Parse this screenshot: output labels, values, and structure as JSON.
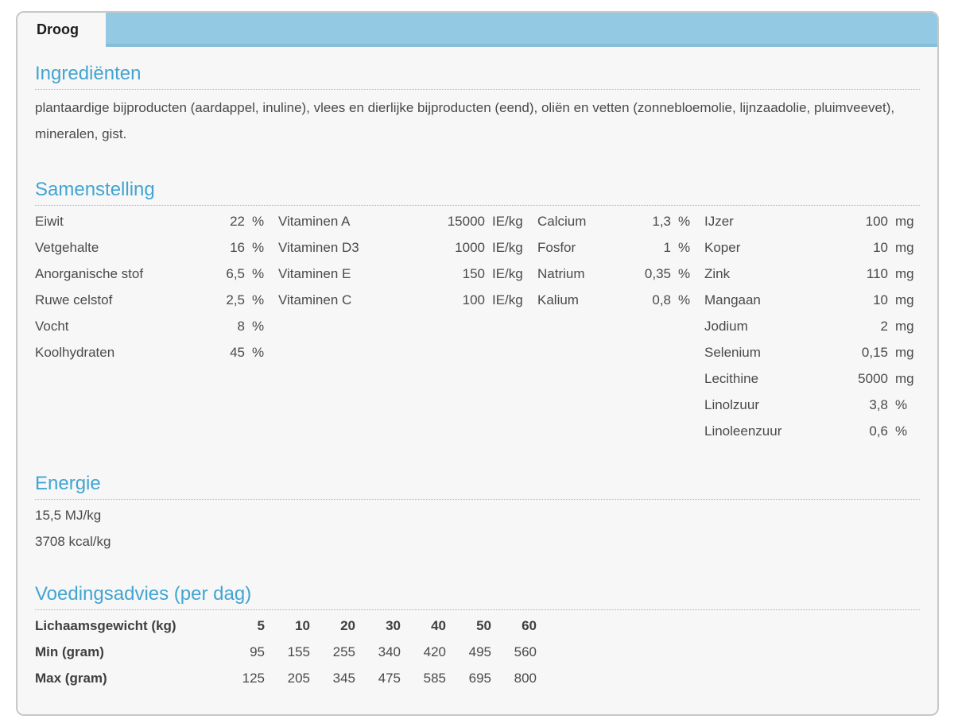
{
  "colors": {
    "tab_bar": "#93c9e3",
    "heading": "#42a4d2"
  },
  "tab": {
    "label": "Droog"
  },
  "sections": {
    "ingredients": {
      "title": "Ingrediënten",
      "text": "plantaardige bijproducten (aardappel, inuline), vlees en dierlijke bijproducten (eend), oliën en vetten (zonnebloemolie, lijnzaadolie, pluimveevet), mineralen, gist."
    },
    "composition": {
      "title": "Samenstelling",
      "columns": [
        {
          "rows": [
            {
              "label": "Eiwit",
              "value": "22",
              "unit": "%"
            },
            {
              "label": "Vetgehalte",
              "value": "16",
              "unit": "%"
            },
            {
              "label": "Anorganische stof",
              "value": "6,5",
              "unit": "%"
            },
            {
              "label": "Ruwe celstof",
              "value": "2,5",
              "unit": "%"
            },
            {
              "label": "Vocht",
              "value": "8",
              "unit": "%"
            },
            {
              "label": "Koolhydraten",
              "value": "45",
              "unit": "%"
            }
          ]
        },
        {
          "rows": [
            {
              "label": "Vitaminen A",
              "value": "15000",
              "unit": "IE/kg"
            },
            {
              "label": "Vitaminen D3",
              "value": "1000",
              "unit": "IE/kg"
            },
            {
              "label": "Vitaminen E",
              "value": "150",
              "unit": "IE/kg"
            },
            {
              "label": "Vitaminen C",
              "value": "100",
              "unit": "IE/kg"
            }
          ]
        },
        {
          "rows": [
            {
              "label": "Calcium",
              "value": "1,3",
              "unit": "%"
            },
            {
              "label": "Fosfor",
              "value": "1",
              "unit": "%"
            },
            {
              "label": "Natrium",
              "value": "0,35",
              "unit": "%"
            },
            {
              "label": "Kalium",
              "value": "0,8",
              "unit": "%"
            }
          ]
        },
        {
          "rows": [
            {
              "label": "IJzer",
              "value": "100",
              "unit": "mg"
            },
            {
              "label": "Koper",
              "value": "10",
              "unit": "mg"
            },
            {
              "label": "Zink",
              "value": "110",
              "unit": "mg"
            },
            {
              "label": "Mangaan",
              "value": "10",
              "unit": "mg"
            },
            {
              "label": "Jodium",
              "value": "2",
              "unit": "mg"
            },
            {
              "label": "Selenium",
              "value": "0,15",
              "unit": "mg"
            },
            {
              "label": "Lecithine",
              "value": "5000",
              "unit": "mg"
            },
            {
              "label": "Linolzuur",
              "value": "3,8",
              "unit": "%"
            },
            {
              "label": "Linoleenzuur",
              "value": "0,6",
              "unit": "%"
            }
          ]
        }
      ]
    },
    "energy": {
      "title": "Energie",
      "lines": [
        "15,5 MJ/kg",
        "3708 kcal/kg"
      ]
    },
    "feeding": {
      "title": "Voedingsadvies (per dag)",
      "header_label": "Lichaamsgewicht (kg)",
      "weights": [
        "5",
        "10",
        "20",
        "30",
        "40",
        "50",
        "60"
      ],
      "rows": [
        {
          "label": "Min (gram)",
          "values": [
            "95",
            "155",
            "255",
            "340",
            "420",
            "495",
            "560"
          ]
        },
        {
          "label": "Max (gram)",
          "values": [
            "125",
            "205",
            "345",
            "475",
            "585",
            "695",
            "800"
          ]
        }
      ]
    }
  }
}
